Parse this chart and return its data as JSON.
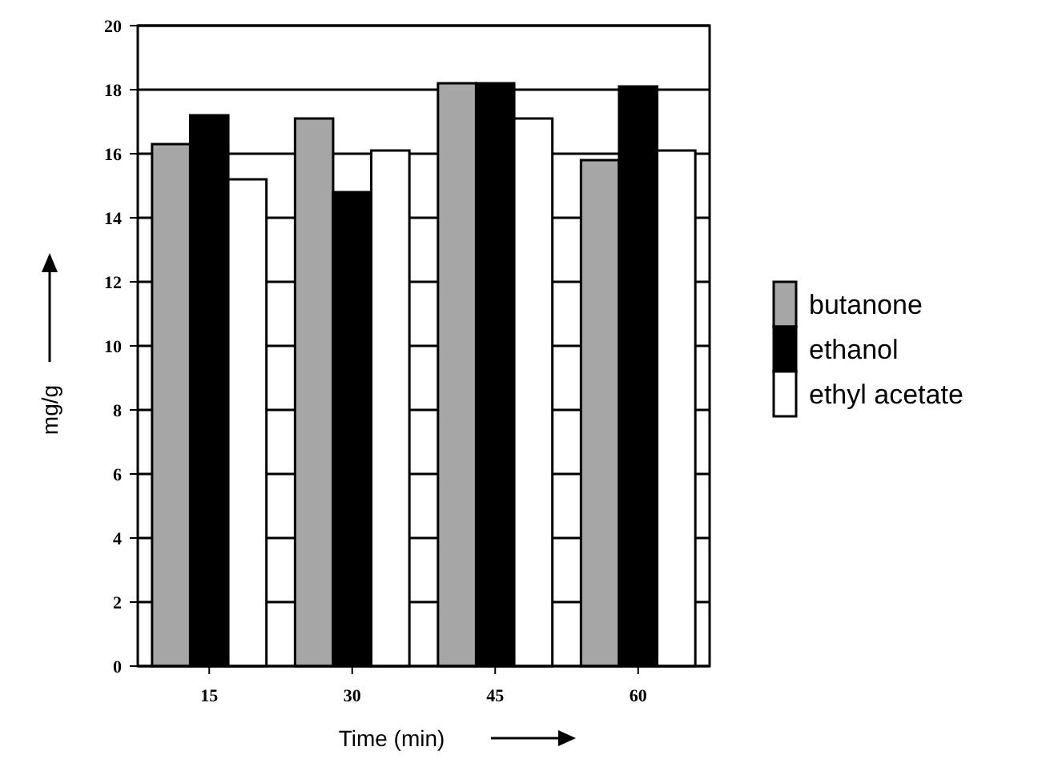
{
  "chart_data": {
    "type": "bar",
    "xlabel": "Time (min)",
    "ylabel": "mg/g",
    "categories": [
      "15",
      "30",
      "45",
      "60"
    ],
    "series": [
      {
        "name": "butanone",
        "color": "#a6a6a6",
        "values": [
          16.3,
          17.1,
          18.2,
          15.8
        ]
      },
      {
        "name": "ethanol",
        "color": "#000000",
        "values": [
          17.2,
          14.8,
          18.2,
          18.1
        ]
      },
      {
        "name": "ethyl acetate",
        "color": "#ffffff",
        "values": [
          15.2,
          16.1,
          17.1,
          16.1
        ]
      }
    ],
    "ylim": [
      0,
      20
    ],
    "yticks": [
      0,
      2,
      4,
      6,
      8,
      10,
      12,
      14,
      16,
      18,
      20
    ],
    "grid": "y",
    "legend": "right"
  }
}
